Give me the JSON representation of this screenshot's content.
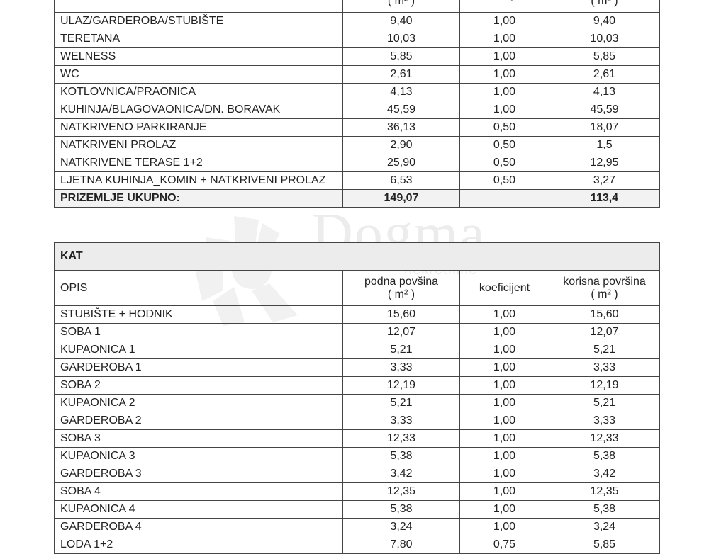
{
  "headers": {
    "opis": "OPIS",
    "podna": "podna povšina",
    "unit": "( m² )",
    "koef": "koeficijent",
    "korisna": "korisna površina"
  },
  "prizemlje": {
    "rows": [
      {
        "opis": "ULAZ/GARDEROBA/STUBIŠTE",
        "podna": "9,40",
        "koef": "1,00",
        "korisna": "9,40"
      },
      {
        "opis": "TERETANA",
        "podna": "10,03",
        "koef": "1,00",
        "korisna": "10,03"
      },
      {
        "opis": "WELNESS",
        "podna": "5,85",
        "koef": "1,00",
        "korisna": "5,85"
      },
      {
        "opis": "WC",
        "podna": "2,61",
        "koef": "1,00",
        "korisna": "2,61"
      },
      {
        "opis": "KOTLOVNICA/PRAONICA",
        "podna": "4,13",
        "koef": "1,00",
        "korisna": "4,13"
      },
      {
        "opis": "KUHINJA/BLAGOVAONICA/DN. BORAVAK",
        "podna": "45,59",
        "koef": "1,00",
        "korisna": "45,59"
      },
      {
        "opis": "NATKRIVENO PARKIRANJE",
        "podna": "36,13",
        "koef": "0,50",
        "korisna": "18,07"
      },
      {
        "opis": "NATKRIVENI PROLAZ",
        "podna": "2,90",
        "koef": "0,50",
        "korisna": "1,5"
      },
      {
        "opis": "NATKRIVENE TERASE 1+2",
        "podna": "25,90",
        "koef": "0,50",
        "korisna": "12,95"
      },
      {
        "opis": "LJETNA KUHINJA_KOMIN + NATKRIVENI PROLAZ",
        "podna": "6,53",
        "koef": "0,50",
        "korisna": "3,27"
      }
    ],
    "total": {
      "opis": "PRIZEMLJE UKUPNO:",
      "podna": "149,07",
      "koef": "",
      "korisna": "113,4"
    }
  },
  "kat": {
    "title": "KAT",
    "rows": [
      {
        "opis": "STUBIŠTE + HODNIK",
        "podna": "15,60",
        "koef": "1,00",
        "korisna": "15,60"
      },
      {
        "opis": "SOBA 1",
        "podna": "12,07",
        "koef": "1,00",
        "korisna": "12,07"
      },
      {
        "opis": "KUPAONICA 1",
        "podna": "5,21",
        "koef": "1,00",
        "korisna": "5,21"
      },
      {
        "opis": "GARDEROBA 1",
        "podna": "3,33",
        "koef": "1,00",
        "korisna": "3,33"
      },
      {
        "opis": "SOBA 2",
        "podna": "12,19",
        "koef": "1,00",
        "korisna": "12,19"
      },
      {
        "opis": "KUPAONICA 2",
        "podna": "5,21",
        "koef": "1,00",
        "korisna": "5,21"
      },
      {
        "opis": "GARDEROBA 2",
        "podna": "3,33",
        "koef": "1,00",
        "korisna": "3,33"
      },
      {
        "opis": "SOBA 3",
        "podna": "12,33",
        "koef": "1,00",
        "korisna": "12,33"
      },
      {
        "opis": "KUPAONICA 3",
        "podna": "5,38",
        "koef": "1,00",
        "korisna": "5,38"
      },
      {
        "opis": "GARDEROBA 3",
        "podna": "3,42",
        "koef": "1,00",
        "korisna": "3,42"
      },
      {
        "opis": "SOBA 4",
        "podna": "12,35",
        "koef": "1,00",
        "korisna": "12,35"
      },
      {
        "opis": "KUPAONICA 4",
        "podna": "5,38",
        "koef": "1,00",
        "korisna": "5,38"
      },
      {
        "opis": "GARDEROBA 4",
        "podna": "3,24",
        "koef": "1,00",
        "korisna": "3,24"
      },
      {
        "opis": "LODA 1+2",
        "podna": "7,80",
        "koef": "0,75",
        "korisna": "5,85"
      }
    ]
  },
  "watermark": {
    "brand": "Dogma",
    "sub": "nekretnine"
  }
}
